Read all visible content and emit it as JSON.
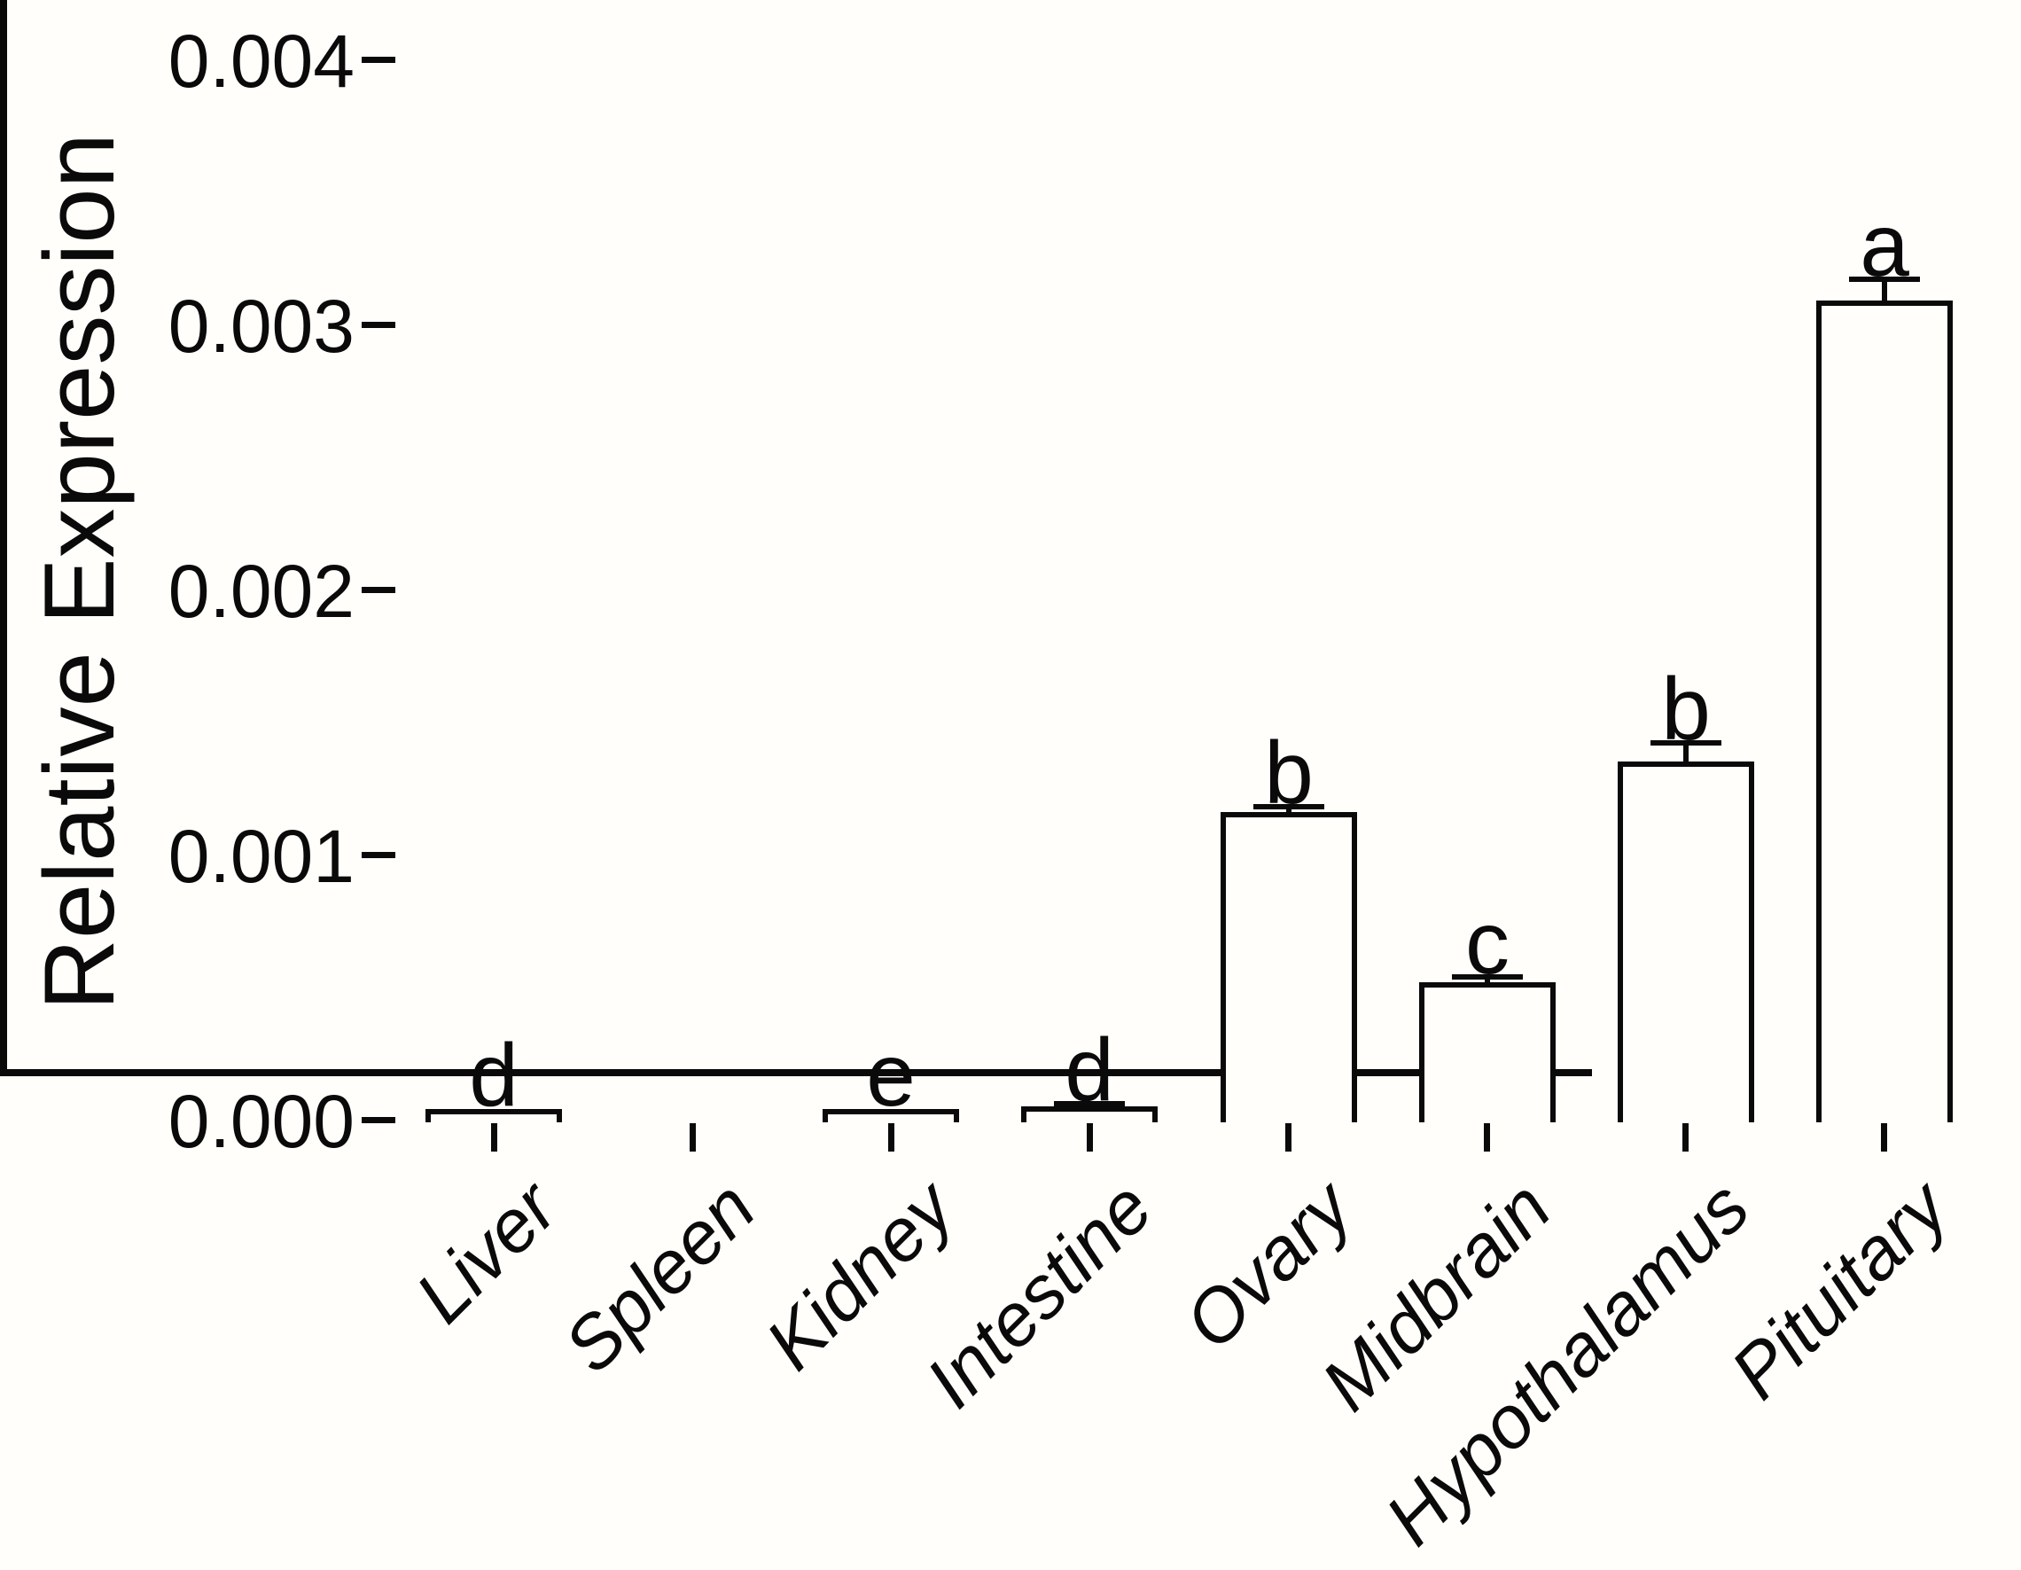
{
  "chart_data": {
    "type": "bar",
    "title": "",
    "ylabel": "Relative Expression",
    "xlabel": "",
    "categories": [
      "Liver",
      "Spleen",
      "Kidney",
      "Intestine",
      "Ovary",
      "Midbrain",
      "Hypothalamus",
      "Pituitary"
    ],
    "values": [
      4e-05,
      0,
      4e-05,
      5e-05,
      0.00116,
      0.00052,
      0.00135,
      0.00309
    ],
    "errors": [
      0,
      0,
      0,
      1e-05,
      2e-05,
      2e-05,
      7e-05,
      8e-05
    ],
    "error_type": "SEM, upper whisker with cap",
    "significance_letters": [
      "d",
      "",
      "e",
      "d",
      "b",
      "c",
      "b",
      "a"
    ],
    "ylim": [
      0,
      0.004
    ],
    "yticks": [
      0,
      0.001,
      0.002,
      0.003,
      0.004
    ],
    "ytick_labels": [
      "0.000",
      "0.001",
      "0.002",
      "0.003",
      "0.004"
    ],
    "xtick_label_rotation_deg": -45,
    "grid": false,
    "legend": "none",
    "bar_fill_color": "#ffffff",
    "bar_stroke_color": "#000000",
    "axis_color": "#000000",
    "background_color": "#fffefb"
  }
}
